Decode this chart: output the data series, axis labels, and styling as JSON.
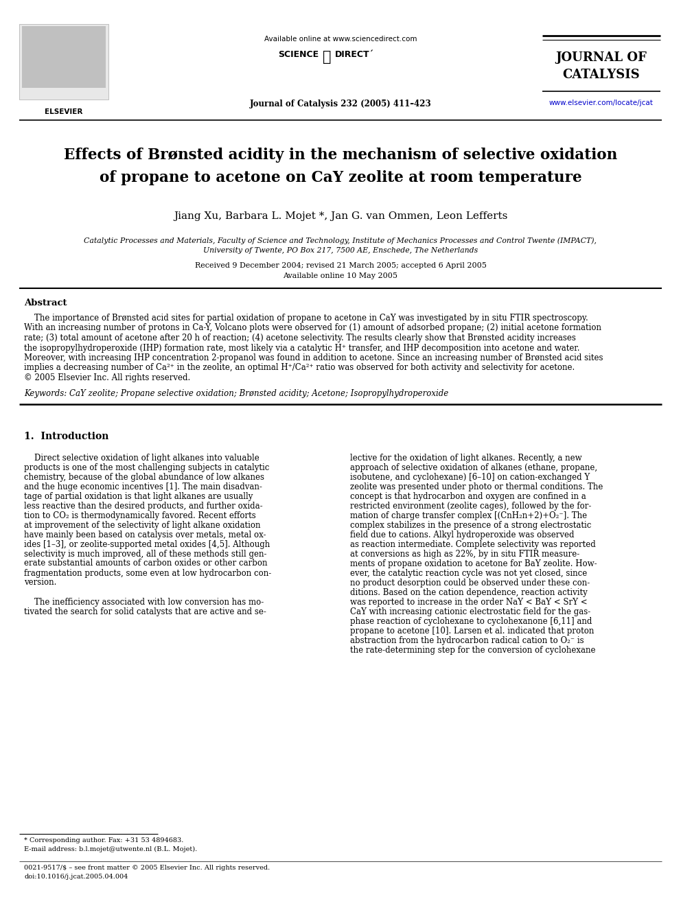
{
  "bg_color": "#ffffff",
  "page_width": 9.92,
  "page_height": 13.23,
  "header_available": "Available online at www.sciencedirect.com",
  "header_scidir": "SCIENCE",
  "header_direct": "DIRECT",
  "header_journal_ref": "Journal of Catalysis 232 (2005) 411–423",
  "journal_name1": "JOURNAL OF",
  "journal_name2": "CATALYSIS",
  "elsevier_url": "www.elsevier.com/locate/jcat",
  "title_line1": "Effects of Brønsted acidity in the mechanism of selective oxidation",
  "title_line2": "of propane to acetone on CaY zeolite at room temperature",
  "authors": "Jiang Xu, Barbara L. Mojet *, Jan G. van Ommen, Leon Lefferts",
  "affiliation1": "Catalytic Processes and Materials, Faculty of Science and Technology, Institute of Mechanics Processes and Control Twente (IMPACT),",
  "affiliation2": "University of Twente, PO Box 217, 7500 AE, Enschede, The Netherlands",
  "received": "Received 9 December 2004; revised 21 March 2005; accepted 6 April 2005",
  "available_online2": "Available online 10 May 2005",
  "abstract_title": "Abstract",
  "abstract_lines": [
    "    The importance of Brønsted acid sites for partial oxidation of propane to acetone in CaY was investigated by in situ FTIR spectroscopy.",
    "With an increasing number of protons in Ca-Y, Volcano plots were observed for (1) amount of adsorbed propane; (2) initial acetone formation",
    "rate; (3) total amount of acetone after 20 h of reaction; (4) acetone selectivity. The results clearly show that Brønsted acidity increases",
    "the isopropylhydroperoxide (IHP) formation rate, most likely via a catalytic H⁺ transfer, and IHP decomposition into acetone and water.",
    "Moreover, with increasing IHP concentration 2-propanol was found in addition to acetone. Since an increasing number of Brønsted acid sites",
    "implies a decreasing number of Ca²⁺ in the zeolite, an optimal H⁺/Ca²⁺ ratio was observed for both activity and selectivity for acetone.",
    "© 2005 Elsevier Inc. All rights reserved."
  ],
  "keywords": "Keywords: CaY zeolite; Propane selective oxidation; Brønsted acidity; Acetone; Isopropylhydroperoxide",
  "section1_title": "1.  Introduction",
  "col1_lines": [
    "    Direct selective oxidation of light alkanes into valuable",
    "products is one of the most challenging subjects in catalytic",
    "chemistry, because of the global abundance of low alkanes",
    "and the huge economic incentives [1]. The main disadvan-",
    "tage of partial oxidation is that light alkanes are usually",
    "less reactive than the desired products, and further oxida-",
    "tion to CO₂ is thermodynamically favored. Recent efforts",
    "at improvement of the selectivity of light alkane oxidation",
    "have mainly been based on catalysis over metals, metal ox-",
    "ides [1–3], or zeolite-supported metal oxides [4,5]. Although",
    "selectivity is much improved, all of these methods still gen-",
    "erate substantial amounts of carbon oxides or other carbon",
    "fragmentation products, some even at low hydrocarbon con-",
    "version.",
    "",
    "    The inefficiency associated with low conversion has mo-",
    "tivated the search for solid catalysts that are active and se-"
  ],
  "col2_lines": [
    "lective for the oxidation of light alkanes. Recently, a new",
    "approach of selective oxidation of alkanes (ethane, propane,",
    "isobutene, and cyclohexane) [6–10] on cation-exchanged Y",
    "zeolite was presented under photo or thermal conditions. The",
    "concept is that hydrocarbon and oxygen are confined in a",
    "restricted environment (zeolite cages), followed by the for-",
    "mation of charge transfer complex [(CnH₂n+2)+O₂⁻]. The",
    "complex stabilizes in the presence of a strong electrostatic",
    "field due to cations. Alkyl hydroperoxide was observed",
    "as reaction intermediate. Complete selectivity was reported",
    "at conversions as high as 22%, by in situ FTIR measure-",
    "ments of propane oxidation to acetone for BaY zeolite. How-",
    "ever, the catalytic reaction cycle was not yet closed, since",
    "no product desorption could be observed under these con-",
    "ditions. Based on the cation dependence, reaction activity",
    "was reported to increase in the order NaY < BaY < SrY <",
    "CaY with increasing cationic electrostatic field for the gas-",
    "phase reaction of cyclohexane to cyclohexanone [6,11] and",
    "propane to acetone [10]. Larsen et al. indicated that proton",
    "abstraction from the hydrocarbon radical cation to O₂⁻ is",
    "the rate-determining step for the conversion of cyclohexane"
  ],
  "footnote_star": "* Corresponding author. Fax: +31 53 4894683.",
  "footnote_email": "E-mail address: b.l.mojet@utwente.nl (B.L. Mojet).",
  "footnote_issn": "0021-9517/$ – see front matter © 2005 Elsevier Inc. All rights reserved.",
  "footnote_doi": "doi:10.1016/j.jcat.2005.04.004"
}
